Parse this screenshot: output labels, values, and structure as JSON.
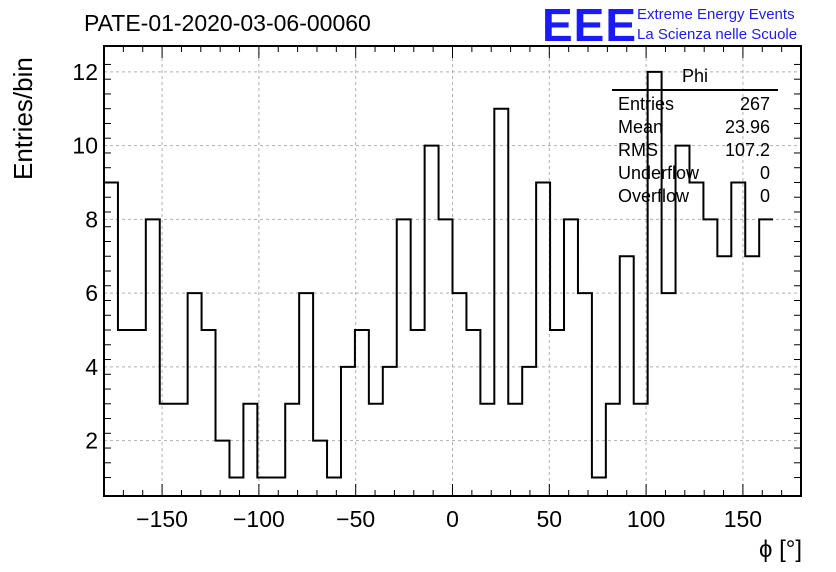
{
  "header": {
    "run_title": "PATE-01-2020-03-06-00060",
    "logo_text": "EEE",
    "logo_line1": "Extreme Energy Events",
    "logo_line2": "La Scienza nelle Scuole",
    "brand_color": "#1a1aff"
  },
  "stats_box": {
    "title": "Phi",
    "rows": [
      {
        "label": "Entries",
        "value": "267"
      },
      {
        "label": "Mean",
        "value": "23.96"
      },
      {
        "label": "RMS",
        "value": "107.2"
      },
      {
        "label": "Underflow",
        "value": "0"
      },
      {
        "label": "Overflow",
        "value": "0"
      }
    ]
  },
  "chart_data": {
    "type": "histogram",
    "title": "PATE-01-2020-03-06-00060",
    "xlabel": "ϕ [°]",
    "ylabel": "Entries/bin",
    "xlim": [
      -180,
      180
    ],
    "ylim": [
      0.5,
      12.7
    ],
    "grid": true,
    "bin_width": 7.2,
    "bin_edges_start": -180,
    "values": [
      9,
      5,
      5,
      8,
      3,
      3,
      6,
      5,
      2,
      1,
      3,
      1,
      1,
      3,
      6,
      2,
      1,
      4,
      5,
      3,
      4,
      8,
      5,
      10,
      8,
      6,
      5,
      3,
      11,
      3,
      4,
      9,
      5,
      8,
      6,
      1,
      3,
      7,
      3,
      12,
      6,
      10,
      9,
      8,
      7,
      9,
      7,
      8
    ],
    "x_ticks": [
      -150,
      -100,
      -50,
      0,
      50,
      100,
      150
    ],
    "x_tick_labels": [
      "−150",
      "−100",
      "−50",
      "0",
      "50",
      "100",
      "150"
    ],
    "y_ticks": [
      2,
      4,
      6,
      8,
      10,
      12
    ],
    "y_tick_labels": [
      "2",
      "4",
      "6",
      "8",
      "10",
      "12"
    ]
  }
}
